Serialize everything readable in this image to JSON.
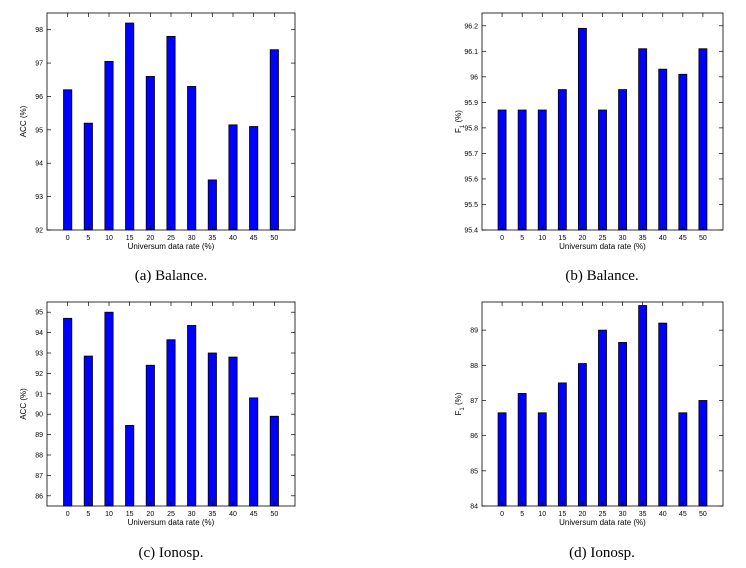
{
  "chart_data": [
    {
      "type": "bar",
      "caption": "(a) Balance.",
      "categories": [
        "0",
        "5",
        "10",
        "15",
        "20",
        "25",
        "30",
        "35",
        "40",
        "45",
        "50"
      ],
      "values": [
        96.2,
        95.2,
        97.05,
        98.2,
        96.6,
        97.8,
        96.3,
        93.5,
        95.15,
        95.1,
        97.4
      ],
      "xlabel": "Universum data rate (%)",
      "ylabel": "ACC (%)",
      "ylim": [
        92,
        98.5
      ],
      "yticks": [
        "92",
        "93",
        "94",
        "95",
        "96",
        "97",
        "98"
      ],
      "bar_color": "#0000ff"
    },
    {
      "type": "bar",
      "caption": "(b) Balance.",
      "categories": [
        "0",
        "5",
        "10",
        "15",
        "20",
        "25",
        "30",
        "35",
        "40",
        "45",
        "50"
      ],
      "values": [
        95.87,
        95.87,
        95.87,
        95.95,
        96.19,
        95.87,
        95.95,
        96.11,
        96.03,
        96.01,
        96.11
      ],
      "xlabel": "Universum data rate (%)",
      "ylabel": "F",
      "ylabel_sub": "1",
      "ylabel_suffix": " (%)",
      "ylim": [
        95.4,
        96.25
      ],
      "yticks": [
        "95.4",
        "95.5",
        "95.6",
        "95.7",
        "95.8",
        "95.9",
        "96",
        "96.1",
        "96.2"
      ],
      "bar_color": "#0000ff"
    },
    {
      "type": "bar",
      "caption": "(c) Ionosp.",
      "categories": [
        "0",
        "5",
        "10",
        "15",
        "20",
        "25",
        "30",
        "35",
        "40",
        "45",
        "50"
      ],
      "values": [
        94.7,
        92.85,
        95.0,
        89.45,
        92.4,
        93.65,
        94.35,
        93.0,
        92.8,
        90.8,
        89.9
      ],
      "xlabel": "Universum data rate (%)",
      "ylabel": "ACC (%)",
      "ylim": [
        85.5,
        95.5
      ],
      "yticks": [
        "86",
        "87",
        "88",
        "89",
        "90",
        "91",
        "92",
        "93",
        "94",
        "95"
      ],
      "bar_color": "#0000ff"
    },
    {
      "type": "bar",
      "caption": "(d) Ionosp.",
      "categories": [
        "0",
        "5",
        "10",
        "15",
        "20",
        "25",
        "30",
        "35",
        "40",
        "45",
        "50"
      ],
      "values": [
        86.65,
        87.2,
        86.65,
        87.5,
        88.05,
        89.0,
        88.65,
        89.7,
        89.2,
        86.65,
        87.0
      ],
      "xlabel": "Universum data rate (%)",
      "ylabel": "F",
      "ylabel_sub": "1",
      "ylabel_suffix": " (%)",
      "ylim": [
        84,
        89.8
      ],
      "yticks": [
        "84",
        "85",
        "86",
        "87",
        "88",
        "89"
      ],
      "bar_color": "#0000ff"
    }
  ]
}
